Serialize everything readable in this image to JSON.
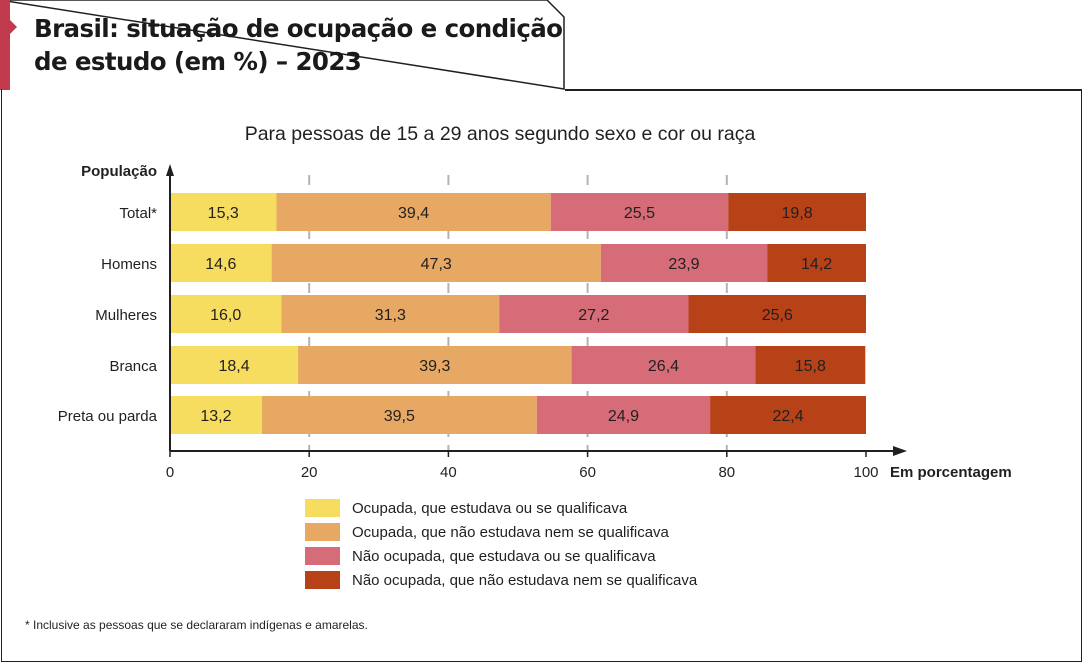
{
  "title": {
    "line1": "Brasil: situação de ocupação e condição",
    "line2": "de estudo (em %) – 2023"
  },
  "footnote": "* Inclusive as pessoas que se declararam indígenas e amarelas.",
  "colors": {
    "accent": "#c23a4e",
    "series": [
      "#f7dd5f",
      "#e6a862",
      "#d56c78",
      "#b84218"
    ]
  },
  "chart_data": {
    "type": "bar",
    "orientation": "horizontal",
    "stacked": true,
    "title": "Para pessoas de 15 a 29 anos segundo sexo e cor ou raça",
    "ylabel": "População",
    "xlabel": "Em porcentagem",
    "xlim": [
      0,
      100
    ],
    "xticks": [
      "0",
      "20",
      "40",
      "60",
      "80",
      "100"
    ],
    "categories": [
      "Total*",
      "Homens",
      "Mulheres",
      "Branca",
      "Preta ou parda"
    ],
    "series": [
      {
        "name": "Ocupada, que estudava ou se qualificava",
        "values": [
          15.3,
          14.6,
          16.0,
          18.4,
          13.2
        ],
        "labels": [
          "15,3",
          "14,6",
          "16,0",
          "18,4",
          "13,2"
        ]
      },
      {
        "name": "Ocupada, que não estudava nem se qualificava",
        "values": [
          39.4,
          47.3,
          31.3,
          39.3,
          39.5
        ],
        "labels": [
          "39,4",
          "47,3",
          "31,3",
          "39,3",
          "39,5"
        ]
      },
      {
        "name": "Não ocupada, que estudava ou se qualificava",
        "values": [
          25.5,
          23.9,
          27.2,
          26.4,
          24.9
        ],
        "labels": [
          "25,5",
          "23,9",
          "27,2",
          "26,4",
          "24,9"
        ]
      },
      {
        "name": "Não ocupada, que não estudava nem se qualificava",
        "values": [
          19.8,
          14.2,
          25.6,
          15.8,
          22.4
        ],
        "labels": [
          "19,8",
          "14,2",
          "25,6",
          "15,8",
          "22,4"
        ]
      }
    ],
    "grid": "vertical dashed",
    "legend": "bottom"
  }
}
